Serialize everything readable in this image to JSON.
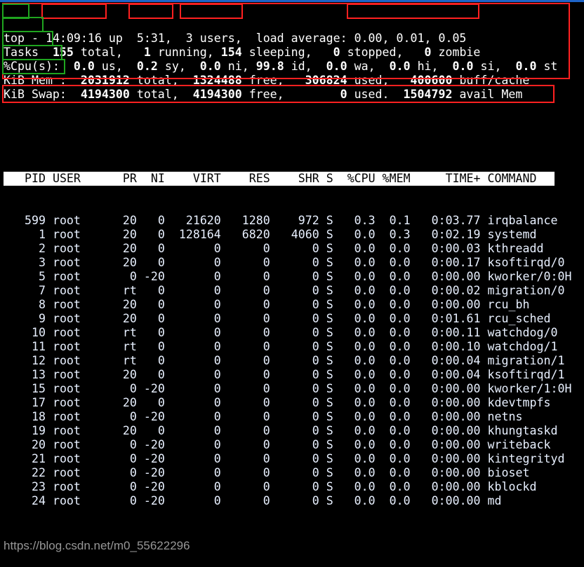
{
  "summary": [
    [
      {
        "t": "top",
        "b": false
      },
      {
        "t": " - ",
        "b": false
      },
      {
        "t": "14:09:16",
        "b": false
      },
      {
        "t": " up  ",
        "b": false
      },
      {
        "t": "5:31,",
        "b": false
      },
      {
        "t": "  3 users,",
        "b": false
      },
      {
        "t": "  load average: ",
        "b": false
      },
      {
        "t": "0.00, 0.01, 0.05",
        "b": false
      }
    ],
    [
      {
        "t": "Tasks",
        "b": false
      },
      {
        "t": "  ",
        "b": false
      },
      {
        "t": "155",
        "b": true
      },
      {
        "t": " total,   ",
        "b": false
      },
      {
        "t": "1",
        "b": true
      },
      {
        "t": " running, ",
        "b": false
      },
      {
        "t": "154",
        "b": true
      },
      {
        "t": " sleeping,   ",
        "b": false
      },
      {
        "t": "0",
        "b": true
      },
      {
        "t": " stopped,   ",
        "b": false
      },
      {
        "t": "0",
        "b": true
      },
      {
        "t": " zombie",
        "b": false
      }
    ],
    [
      {
        "t": "%Cpu(s)",
        "b": false
      },
      {
        "t": ":  ",
        "b": false
      },
      {
        "t": "0.0",
        "b": true
      },
      {
        "t": " us,  ",
        "b": false
      },
      {
        "t": "0.2",
        "b": true
      },
      {
        "t": " sy,  ",
        "b": false
      },
      {
        "t": "0.0",
        "b": true
      },
      {
        "t": " ni, ",
        "b": false
      },
      {
        "t": "99.8",
        "b": true
      },
      {
        "t": " id,  ",
        "b": false
      },
      {
        "t": "0.0",
        "b": true
      },
      {
        "t": " wa,  ",
        "b": false
      },
      {
        "t": "0.0",
        "b": true
      },
      {
        "t": " hi,  ",
        "b": false
      },
      {
        "t": "0.0",
        "b": true
      },
      {
        "t": " si,  ",
        "b": false
      },
      {
        "t": "0.0",
        "b": true
      },
      {
        "t": " st",
        "b": false
      }
    ],
    [
      {
        "t": "KiB Mem :  ",
        "b": false
      },
      {
        "t": "2031912",
        "b": true
      },
      {
        "t": " total,  ",
        "b": false
      },
      {
        "t": "1324488",
        "b": true
      },
      {
        "t": " free,   ",
        "b": false
      },
      {
        "t": "306824",
        "b": true
      },
      {
        "t": " used,   ",
        "b": false
      },
      {
        "t": "400600",
        "b": true
      },
      {
        "t": " buff/cache",
        "b": false
      }
    ],
    [
      {
        "t": "KiB Swap:  ",
        "b": false
      },
      {
        "t": "4194300",
        "b": true
      },
      {
        "t": " total,  ",
        "b": false
      },
      {
        "t": "4194300",
        "b": true
      },
      {
        "t": " free,        ",
        "b": false
      },
      {
        "t": "0",
        "b": true
      },
      {
        "t": " used.  ",
        "b": false
      },
      {
        "t": "1504792",
        "b": true
      },
      {
        "t": " avail Mem",
        "b": false
      }
    ]
  ],
  "columns": [
    "PID",
    "USER",
    "PR",
    "NI",
    "VIRT",
    "RES",
    "SHR",
    "S",
    "%CPU",
    "%MEM",
    "TIME+",
    "COMMAND"
  ],
  "processes": [
    [
      "599",
      "root",
      "20",
      "0",
      "21620",
      "1280",
      "972",
      "S",
      "0.3",
      "0.1",
      "0:03.77",
      "irqbalance"
    ],
    [
      "1",
      "root",
      "20",
      "0",
      "128164",
      "6820",
      "4060",
      "S",
      "0.0",
      "0.3",
      "0:02.19",
      "systemd"
    ],
    [
      "2",
      "root",
      "20",
      "0",
      "0",
      "0",
      "0",
      "S",
      "0.0",
      "0.0",
      "0:00.03",
      "kthreadd"
    ],
    [
      "3",
      "root",
      "20",
      "0",
      "0",
      "0",
      "0",
      "S",
      "0.0",
      "0.0",
      "0:00.17",
      "ksoftirqd/0"
    ],
    [
      "5",
      "root",
      "0",
      "-20",
      "0",
      "0",
      "0",
      "S",
      "0.0",
      "0.0",
      "0:00.00",
      "kworker/0:0H"
    ],
    [
      "7",
      "root",
      "rt",
      "0",
      "0",
      "0",
      "0",
      "S",
      "0.0",
      "0.0",
      "0:00.02",
      "migration/0"
    ],
    [
      "8",
      "root",
      "20",
      "0",
      "0",
      "0",
      "0",
      "S",
      "0.0",
      "0.0",
      "0:00.00",
      "rcu_bh"
    ],
    [
      "9",
      "root",
      "20",
      "0",
      "0",
      "0",
      "0",
      "S",
      "0.0",
      "0.0",
      "0:01.61",
      "rcu_sched"
    ],
    [
      "10",
      "root",
      "rt",
      "0",
      "0",
      "0",
      "0",
      "S",
      "0.0",
      "0.0",
      "0:00.11",
      "watchdog/0"
    ],
    [
      "11",
      "root",
      "rt",
      "0",
      "0",
      "0",
      "0",
      "S",
      "0.0",
      "0.0",
      "0:00.10",
      "watchdog/1"
    ],
    [
      "12",
      "root",
      "rt",
      "0",
      "0",
      "0",
      "0",
      "S",
      "0.0",
      "0.0",
      "0:00.04",
      "migration/1"
    ],
    [
      "13",
      "root",
      "20",
      "0",
      "0",
      "0",
      "0",
      "S",
      "0.0",
      "0.0",
      "0:00.04",
      "ksoftirqd/1"
    ],
    [
      "15",
      "root",
      "0",
      "-20",
      "0",
      "0",
      "0",
      "S",
      "0.0",
      "0.0",
      "0:00.00",
      "kworker/1:0H"
    ],
    [
      "17",
      "root",
      "20",
      "0",
      "0",
      "0",
      "0",
      "S",
      "0.0",
      "0.0",
      "0:00.00",
      "kdevtmpfs"
    ],
    [
      "18",
      "root",
      "0",
      "-20",
      "0",
      "0",
      "0",
      "S",
      "0.0",
      "0.0",
      "0:00.00",
      "netns"
    ],
    [
      "19",
      "root",
      "20",
      "0",
      "0",
      "0",
      "0",
      "S",
      "0.0",
      "0.0",
      "0:00.00",
      "khungtaskd"
    ],
    [
      "20",
      "root",
      "0",
      "-20",
      "0",
      "0",
      "0",
      "S",
      "0.0",
      "0.0",
      "0:00.00",
      "writeback"
    ],
    [
      "21",
      "root",
      "0",
      "-20",
      "0",
      "0",
      "0",
      "S",
      "0.0",
      "0.0",
      "0:00.00",
      "kintegrityd"
    ],
    [
      "22",
      "root",
      "0",
      "-20",
      "0",
      "0",
      "0",
      "S",
      "0.0",
      "0.0",
      "0:00.00",
      "bioset"
    ],
    [
      "23",
      "root",
      "0",
      "-20",
      "0",
      "0",
      "0",
      "S",
      "0.0",
      "0.0",
      "0:00.00",
      "kblockd"
    ],
    [
      "24",
      "root",
      "0",
      "-20",
      "0",
      "0",
      "0",
      "S",
      "0.0",
      "0.0",
      "0:00.00",
      "md"
    ]
  ],
  "watermark": "https://blog.csdn.net/m0_55622296",
  "colors": {
    "background": "#000000",
    "annotation_red": "#ff2020",
    "annotation_green": "#1fa51f",
    "header_bg": "#ffffff"
  }
}
